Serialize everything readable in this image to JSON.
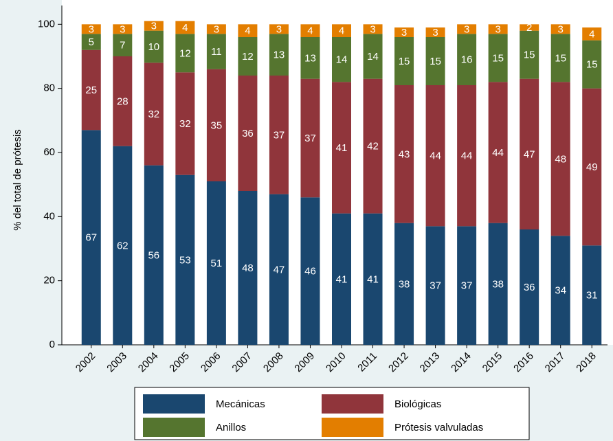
{
  "chart_data": {
    "type": "stacked-bar",
    "y_label": "% del total de prótesis",
    "categories": [
      "2002",
      "2003",
      "2004",
      "2005",
      "2006",
      "2007",
      "2008",
      "2009",
      "2010",
      "2011",
      "2012",
      "2013",
      "2014",
      "2015",
      "2016",
      "2017",
      "2018"
    ],
    "series": [
      {
        "name": "Mecánicas",
        "color": "#1a476f",
        "values": [
          67,
          62,
          56,
          53,
          51,
          48,
          47,
          46,
          41,
          41,
          38,
          37,
          37,
          38,
          36,
          34,
          31
        ]
      },
      {
        "name": "Biológicas",
        "color": "#90353b",
        "values": [
          25,
          28,
          32,
          32,
          35,
          36,
          37,
          37,
          41,
          42,
          43,
          44,
          44,
          44,
          47,
          48,
          49
        ]
      },
      {
        "name": "Anillos",
        "color": "#55752f",
        "values": [
          5,
          7,
          10,
          12,
          11,
          12,
          13,
          13,
          14,
          14,
          15,
          15,
          16,
          15,
          15,
          15,
          15
        ]
      },
      {
        "name": "Prótesis valvuladas",
        "color": "#e37e00",
        "values": [
          3,
          3,
          3,
          4,
          3,
          4,
          3,
          4,
          4,
          3,
          3,
          3,
          3,
          3,
          2,
          3,
          4
        ]
      }
    ],
    "ylim": [
      0,
      105
    ],
    "yticks": [
      0,
      20,
      40,
      60,
      80,
      100
    ],
    "legend": "bottom"
  }
}
